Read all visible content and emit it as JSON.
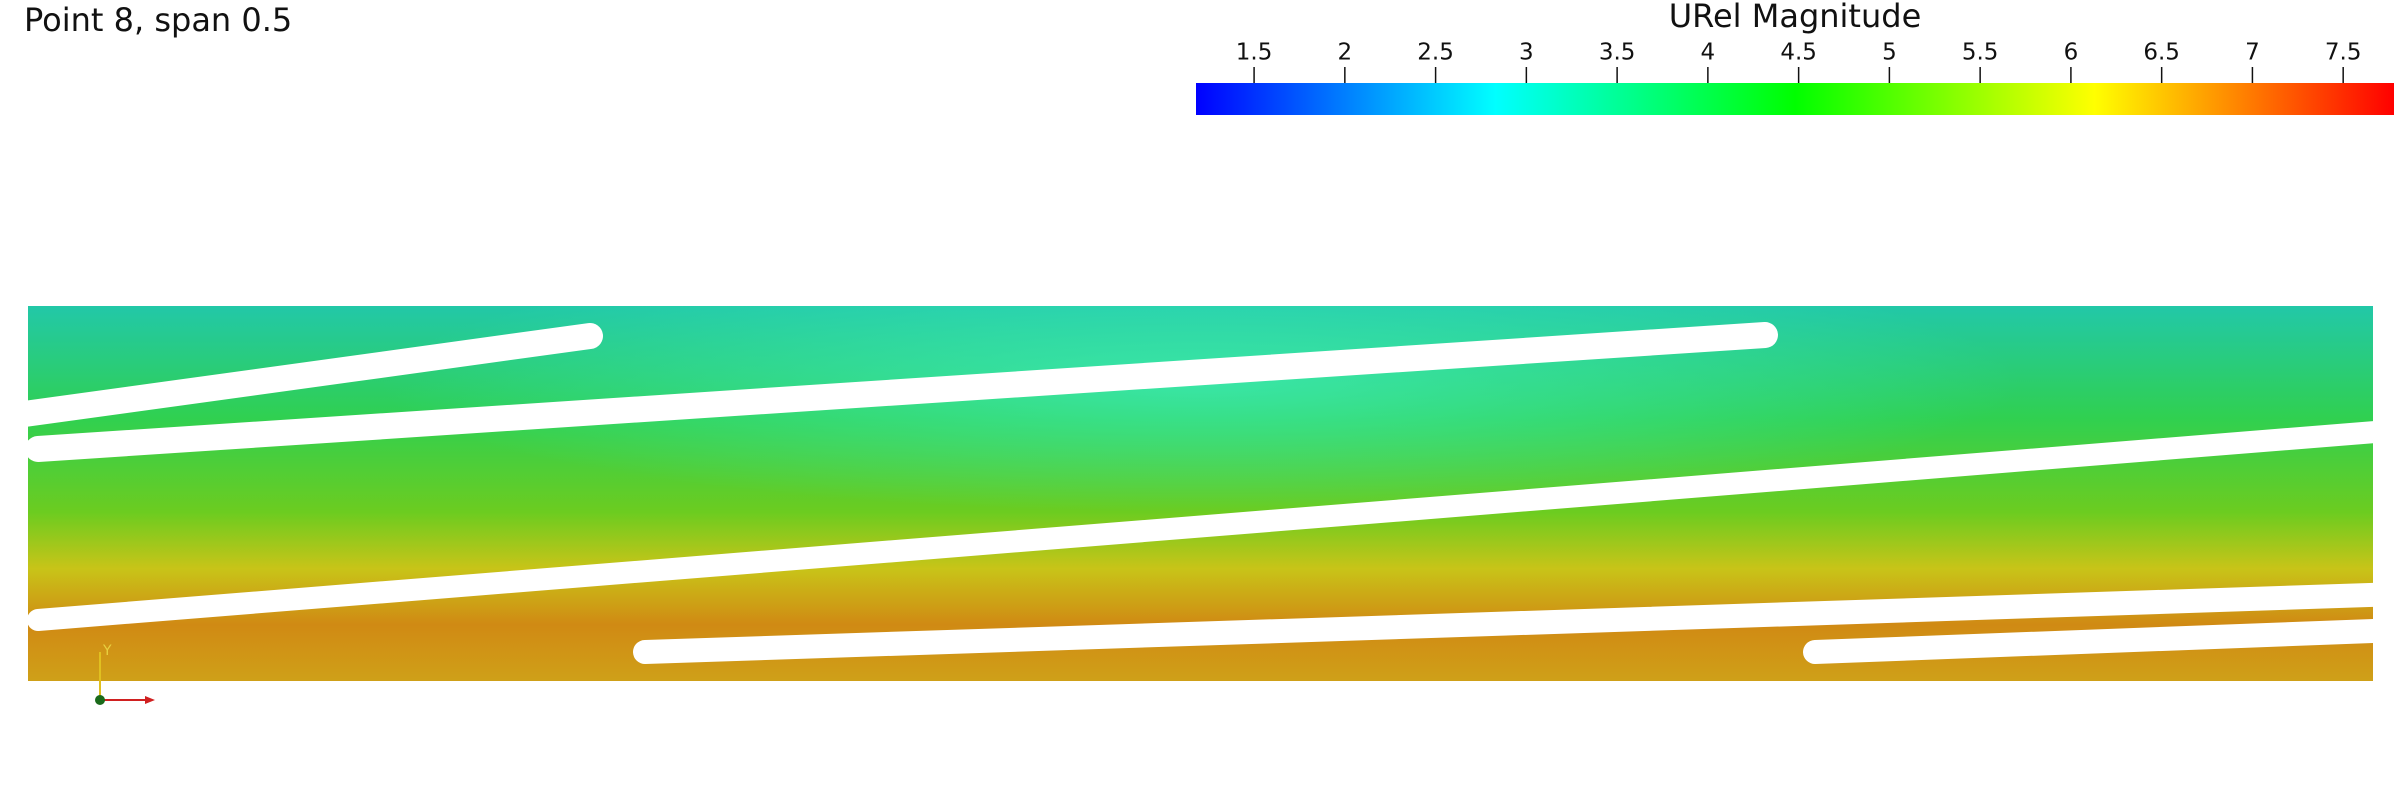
{
  "header": {
    "title": "Point 8, span 0.5"
  },
  "colorbar": {
    "title": "URel Magnitude",
    "range": [
      1.18,
      7.78
    ],
    "ticks": [
      1.5,
      2,
      2.5,
      3,
      3.5,
      4,
      4.5,
      5,
      5.5,
      6,
      6.5,
      7,
      7.5
    ],
    "colormap": [
      "#0000ff",
      "#00ffff",
      "#00ff00",
      "#ffff00",
      "#ff0000"
    ]
  },
  "orientation_axes": {
    "y_label": "Y"
  }
}
